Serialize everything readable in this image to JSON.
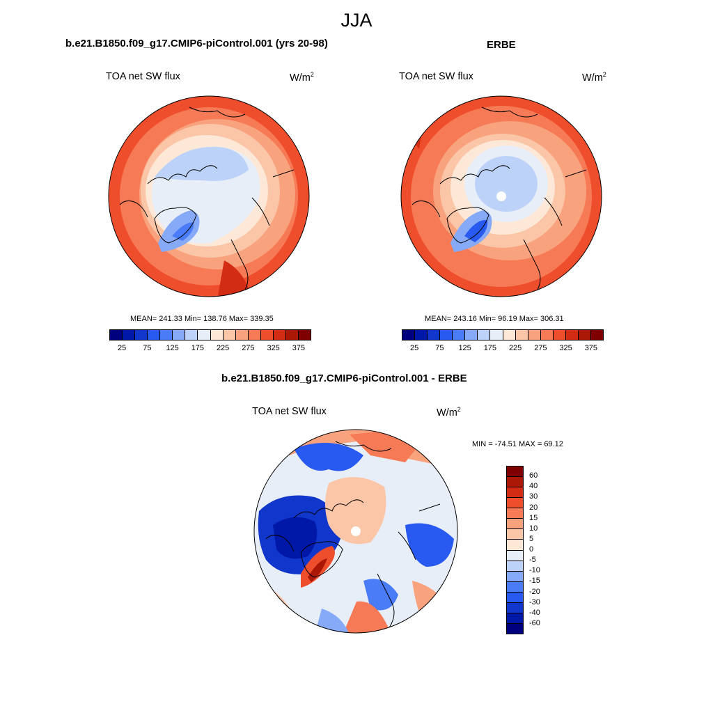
{
  "title": "JJA",
  "colors": {
    "abs_scale": [
      "#00007f",
      "#0018a8",
      "#1036cc",
      "#2859f0",
      "#4a7cf8",
      "#86aaf8",
      "#bcd2f8",
      "#e8eef8",
      "#fde8d8",
      "#fbc6a8",
      "#f9a27e",
      "#f77a56",
      "#ef4e2c",
      "#d32c14",
      "#ab1806",
      "#7f0000"
    ],
    "diff_scale": [
      "#7f0000",
      "#ab1806",
      "#d32c14",
      "#ef4e2c",
      "#f77a56",
      "#f9a27e",
      "#fbc6a8",
      "#fde8d8",
      "#e8eef8",
      "#bcd2f8",
      "#86aaf8",
      "#4a7cf8",
      "#2859f0",
      "#1036cc",
      "#0018a8",
      "#00007f"
    ],
    "land": "#000000"
  },
  "panels": [
    {
      "title": "b.e21.B1850.f09_g17.CMIP6-piControl.001 (yrs 20-98)",
      "variable": "TOA net SW flux",
      "unit_base": "W/m",
      "unit_exp": "2",
      "stats": "MEAN= 241.33  Min= 138.76  Max= 339.35",
      "colorbar_ticks": [
        "25",
        "75",
        "125",
        "175",
        "225",
        "275",
        "325",
        "375"
      ]
    },
    {
      "title": "ERBE",
      "variable": "TOA net SW flux",
      "unit_base": "W/m",
      "unit_exp": "2",
      "stats": "MEAN= 243.16  Min=  96.19  Max= 306.31",
      "colorbar_ticks": [
        "25",
        "75",
        "125",
        "175",
        "225",
        "275",
        "325",
        "375"
      ]
    },
    {
      "title": "b.e21.B1850.f09_g17.CMIP6-piControl.001 - ERBE",
      "variable": "TOA net SW flux",
      "unit_base": "W/m",
      "unit_exp": "2",
      "stats": "MIN = -74.51 MAX =  69.12",
      "colorbar_ticks": [
        "60",
        "40",
        "30",
        "20",
        "15",
        "10",
        "5",
        "0",
        "-5",
        "-10",
        "-15",
        "-20",
        "-30",
        "-40",
        "-60"
      ]
    }
  ]
}
